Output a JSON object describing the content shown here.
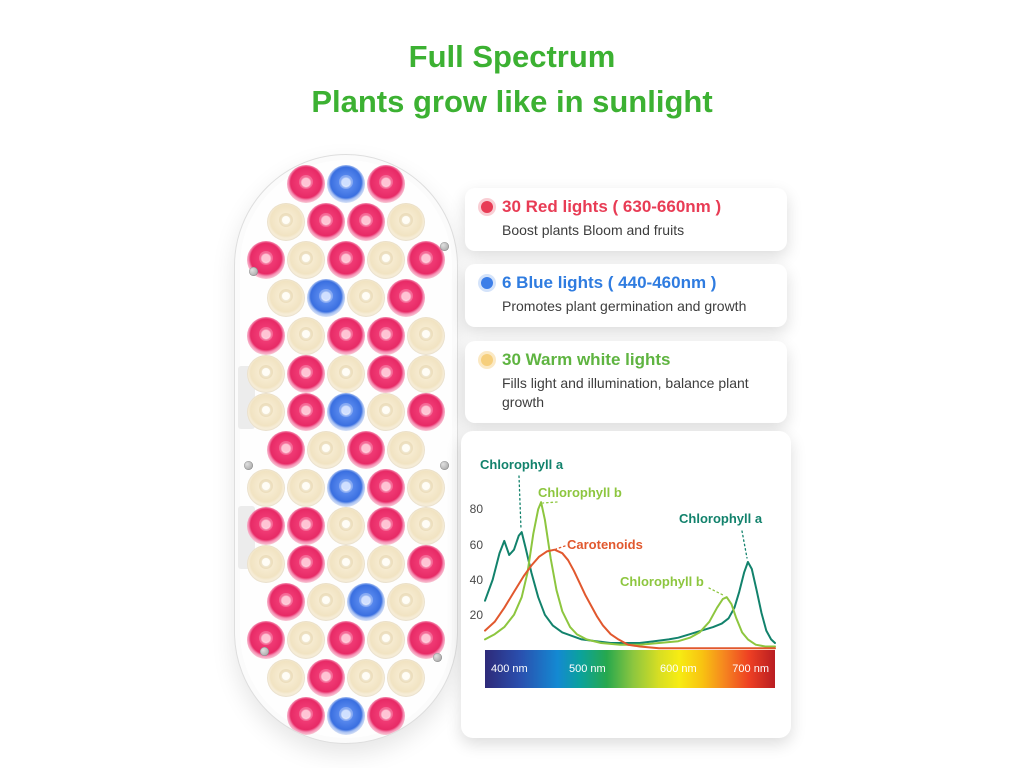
{
  "title": {
    "line1": "Full Spectrum",
    "line2": "Plants grow like in sunlight",
    "color": "#3cb132"
  },
  "features": [
    {
      "title": "30 Red lights ( 630-660nm )",
      "desc": "Boost plants Bloom and fruits",
      "color": "#e83c55",
      "dot_color": "#e83c55"
    },
    {
      "title": "6 Blue lights ( 440-460nm )",
      "desc": "Promotes plant germination and growth",
      "color": "#2f7ce0",
      "dot_color": "#3c7ee8"
    },
    {
      "title": "30 Warm white lights",
      "desc": "Fills light and illumination, balance plant growth",
      "color": "#5fb441",
      "dot_color": "#f6cf7d"
    }
  ],
  "panel": {
    "led_counts": {
      "red": 30,
      "blue": 6,
      "warm_white": 30
    },
    "led_colors": {
      "r": "#e72a66",
      "b": "#3a6fe0",
      "w": "#f1e3c2"
    },
    "led_rows": [
      [
        "r",
        "b",
        "r"
      ],
      [
        "w",
        "r",
        "r",
        "w"
      ],
      [
        "r",
        "w",
        "r",
        "w",
        "r"
      ],
      [
        "w",
        "b",
        "w",
        "r"
      ],
      [
        "r",
        "w",
        "r",
        "r",
        "w"
      ],
      [
        "w",
        "r",
        "w",
        "r",
        "w"
      ],
      [
        "w",
        "r",
        "b",
        "w",
        "r"
      ],
      [
        "r",
        "w",
        "r",
        "w"
      ],
      [
        "w",
        "w",
        "b",
        "r",
        "w"
      ],
      [
        "r",
        "r",
        "w",
        "r",
        "w"
      ],
      [
        "w",
        "r",
        "w",
        "w",
        "r"
      ],
      [
        "r",
        "w",
        "b",
        "w"
      ],
      [
        "r",
        "w",
        "r",
        "w",
        "r"
      ],
      [
        "w",
        "r",
        "w",
        "w"
      ],
      [
        "r",
        "b",
        "r"
      ]
    ]
  },
  "chart_data": {
    "type": "line",
    "title": "",
    "xlabel": "",
    "ylabel": "",
    "xlim": [
      400,
      700
    ],
    "ylim": [
      0,
      90
    ],
    "grid": false,
    "x_axis_style": "spectrum-gradient-bar",
    "yticks": [
      80,
      60,
      40,
      20
    ],
    "xticks": [
      "400 nm",
      "500 nm",
      "600 nm",
      "700 nm"
    ],
    "annotations": [
      {
        "text": "Chlorophyll a",
        "color": "#12826c"
      },
      {
        "text": "Chlorophyll b",
        "color": "#8dc63f"
      },
      {
        "text": "Carotenoids",
        "color": "#e1582e"
      },
      {
        "text": "Chlorophyll a",
        "color": "#12826c"
      },
      {
        "text": "Chlorophyll b",
        "color": "#8dc63f"
      }
    ],
    "series": [
      {
        "name": "Chlorophyll a",
        "color": "#12826c",
        "points": [
          [
            400,
            28
          ],
          [
            408,
            40
          ],
          [
            415,
            55
          ],
          [
            420,
            62
          ],
          [
            425,
            54
          ],
          [
            430,
            57
          ],
          [
            435,
            65
          ],
          [
            438,
            67
          ],
          [
            442,
            58
          ],
          [
            448,
            44
          ],
          [
            455,
            30
          ],
          [
            462,
            20
          ],
          [
            470,
            14
          ],
          [
            480,
            10
          ],
          [
            490,
            8
          ],
          [
            500,
            6
          ],
          [
            515,
            5
          ],
          [
            530,
            4
          ],
          [
            545,
            4
          ],
          [
            560,
            4
          ],
          [
            575,
            5
          ],
          [
            590,
            6
          ],
          [
            600,
            7
          ],
          [
            612,
            9
          ],
          [
            624,
            11
          ],
          [
            636,
            13
          ],
          [
            645,
            15
          ],
          [
            652,
            18
          ],
          [
            658,
            24
          ],
          [
            663,
            33
          ],
          [
            668,
            44
          ],
          [
            672,
            50
          ],
          [
            676,
            46
          ],
          [
            681,
            34
          ],
          [
            686,
            21
          ],
          [
            691,
            11
          ],
          [
            696,
            6
          ],
          [
            700,
            4
          ]
        ]
      },
      {
        "name": "Chlorophyll b",
        "color": "#8dc63f",
        "points": [
          [
            400,
            6
          ],
          [
            410,
            9
          ],
          [
            420,
            13
          ],
          [
            430,
            20
          ],
          [
            438,
            30
          ],
          [
            444,
            44
          ],
          [
            450,
            66
          ],
          [
            455,
            80
          ],
          [
            458,
            84
          ],
          [
            462,
            74
          ],
          [
            468,
            52
          ],
          [
            474,
            34
          ],
          [
            480,
            22
          ],
          [
            488,
            13
          ],
          [
            495,
            9
          ],
          [
            505,
            6
          ],
          [
            520,
            4
          ],
          [
            540,
            3
          ],
          [
            560,
            3
          ],
          [
            580,
            4
          ],
          [
            600,
            5
          ],
          [
            612,
            7
          ],
          [
            622,
            10
          ],
          [
            632,
            16
          ],
          [
            640,
            24
          ],
          [
            646,
            29
          ],
          [
            650,
            30
          ],
          [
            655,
            26
          ],
          [
            660,
            18
          ],
          [
            666,
            10
          ],
          [
            672,
            6
          ],
          [
            680,
            3
          ],
          [
            690,
            2
          ],
          [
            700,
            2
          ]
        ]
      },
      {
        "name": "Carotenoids",
        "color": "#e1582e",
        "points": [
          [
            400,
            11
          ],
          [
            410,
            16
          ],
          [
            420,
            24
          ],
          [
            430,
            33
          ],
          [
            440,
            42
          ],
          [
            448,
            48
          ],
          [
            456,
            53
          ],
          [
            464,
            56
          ],
          [
            472,
            57
          ],
          [
            480,
            55
          ],
          [
            486,
            51
          ],
          [
            492,
            45
          ],
          [
            498,
            38
          ],
          [
            504,
            31
          ],
          [
            510,
            25
          ],
          [
            516,
            19
          ],
          [
            522,
            14
          ],
          [
            530,
            9
          ],
          [
            538,
            6
          ],
          [
            548,
            3
          ],
          [
            560,
            2
          ],
          [
            580,
            1
          ],
          [
            600,
            1
          ],
          [
            630,
            1
          ],
          [
            660,
            1
          ],
          [
            700,
            1
          ]
        ]
      }
    ]
  }
}
